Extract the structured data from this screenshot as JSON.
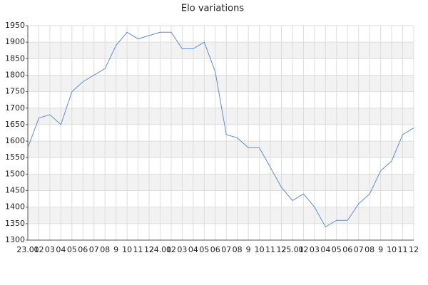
{
  "chart_data": {
    "type": "line",
    "title": "Elo variations",
    "categories": [
      "23.01",
      "02",
      "03",
      "04",
      "05",
      "06",
      "07",
      "08",
      "9",
      "10",
      "11",
      "12",
      "24.01",
      "02",
      "03",
      "04",
      "05",
      "06",
      "07",
      "08",
      "9",
      "10",
      "11",
      "12",
      "25.01",
      "02",
      "03",
      "04",
      "05",
      "06",
      "07",
      "08",
      "9",
      "10",
      "11",
      "12"
    ],
    "values": [
      1580,
      1670,
      1680,
      1650,
      1750,
      1780,
      1800,
      1820,
      1890,
      1930,
      1910,
      1920,
      1930,
      1930,
      1880,
      1880,
      1900,
      1810,
      1620,
      1610,
      1580,
      1580,
      1520,
      1460,
      1420,
      1440,
      1400,
      1340,
      1360,
      1360,
      1410,
      1440,
      1510,
      1540,
      1620,
      1640
    ],
    "color": "#5b8fd6",
    "ylim": [
      1300,
      1950
    ],
    "yticks": [
      1300,
      1350,
      1400,
      1450,
      1500,
      1550,
      1600,
      1650,
      1700,
      1750,
      1800,
      1850,
      1900,
      1950
    ],
    "grid": true,
    "bands": true
  }
}
